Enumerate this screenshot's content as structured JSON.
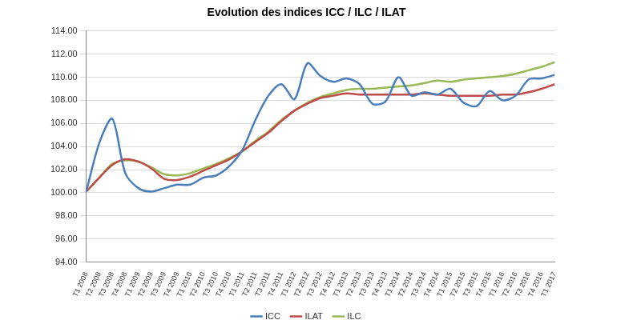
{
  "chart_data": {
    "type": "line",
    "title": "Evolution des indices ICC / ILC / ILAT",
    "categories": [
      "T1 2008",
      "T2 2008",
      "T3 2008",
      "T4 2008",
      "T1 2009",
      "T2 2009",
      "T3 2009",
      "T4 2009",
      "T1 2010",
      "T2 2010",
      "T3 2010",
      "T4 2010",
      "T1 2011",
      "T2 2011",
      "T3 2011",
      "T4 2011",
      "T1 2012",
      "T2 2012",
      "T3 2012",
      "T4 2012",
      "T1 2013",
      "T2 2013",
      "T3 2013",
      "T4 2013",
      "T1 2014",
      "T2 2014",
      "T3 2014",
      "T4 2014",
      "T1 2015",
      "T2 2015",
      "T3 2015",
      "T4 2015",
      "T1 2016",
      "T2 2016",
      "T3 2016",
      "T4 2016",
      "T1 2017"
    ],
    "series": [
      {
        "name": "ICC",
        "color": "#4a7ebb",
        "values": [
          100.1,
          104.3,
          106.4,
          101.7,
          100.4,
          100.1,
          100.4,
          100.7,
          100.7,
          101.3,
          101.5,
          102.3,
          103.7,
          106.3,
          108.4,
          109.4,
          108.1,
          111.2,
          110.1,
          109.6,
          109.9,
          109.4,
          107.7,
          107.9,
          110.0,
          108.4,
          108.7,
          108.5,
          109.0,
          107.8,
          107.5,
          108.8,
          108.0,
          108.4,
          109.8,
          109.9,
          110.2
        ]
      },
      {
        "name": "ILAT",
        "color": "#be4b48",
        "values": [
          100.1,
          101.3,
          102.4,
          102.9,
          102.7,
          102.1,
          101.2,
          101.1,
          101.4,
          101.9,
          102.4,
          102.9,
          103.6,
          104.4,
          105.2,
          106.2,
          107.1,
          107.7,
          108.2,
          108.4,
          108.6,
          108.5,
          108.5,
          108.5,
          108.5,
          108.5,
          108.6,
          108.5,
          108.4,
          108.4,
          108.4,
          108.4,
          108.5,
          108.5,
          108.7,
          109.0,
          109.4
        ]
      },
      {
        "name": "ILC",
        "color": "#98b954",
        "values": [
          100.1,
          101.3,
          102.5,
          102.8,
          102.7,
          102.2,
          101.6,
          101.5,
          101.7,
          102.1,
          102.5,
          103.0,
          103.6,
          104.5,
          105.3,
          106.3,
          107.1,
          107.8,
          108.3,
          108.6,
          108.9,
          109.0,
          109.0,
          109.1,
          109.2,
          109.3,
          109.5,
          109.7,
          109.6,
          109.8,
          109.9,
          110.0,
          110.1,
          110.3,
          110.6,
          110.9,
          111.3
        ]
      }
    ],
    "ylim": [
      94,
      114
    ],
    "yticks": [
      {
        "value": 94,
        "label": "94.00"
      },
      {
        "value": 96,
        "label": "96.00"
      },
      {
        "value": 98,
        "label": "98.00"
      },
      {
        "value": 100,
        "label": "100.00"
      },
      {
        "value": 102,
        "label": "102.00"
      },
      {
        "value": 104,
        "label": "104.00"
      },
      {
        "value": 106,
        "label": "106.00"
      },
      {
        "value": 108,
        "label": "108.00"
      },
      {
        "value": 110,
        "label": "110.00"
      },
      {
        "value": 112,
        "label": "112.00"
      },
      {
        "value": 114,
        "label": "114.00"
      }
    ],
    "grid": true,
    "legend": "bottom"
  }
}
